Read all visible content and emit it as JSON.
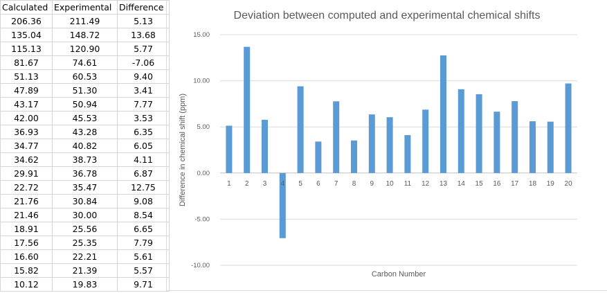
{
  "table": {
    "headers": [
      "Calculated",
      "Experimental",
      "Difference"
    ],
    "rows": [
      [
        "206.36",
        "211.49",
        "5.13"
      ],
      [
        "135.04",
        "148.72",
        "13.68"
      ],
      [
        "115.13",
        "120.90",
        "5.77"
      ],
      [
        "81.67",
        "74.61",
        "-7.06"
      ],
      [
        "51.13",
        "60.53",
        "9.40"
      ],
      [
        "47.89",
        "51.30",
        "3.41"
      ],
      [
        "43.17",
        "50.94",
        "7.77"
      ],
      [
        "42.00",
        "45.53",
        "3.53"
      ],
      [
        "36.93",
        "43.28",
        "6.35"
      ],
      [
        "34.77",
        "40.82",
        "6.05"
      ],
      [
        "34.62",
        "38.73",
        "4.11"
      ],
      [
        "29.91",
        "36.78",
        "6.87"
      ],
      [
        "22.72",
        "35.47",
        "12.75"
      ],
      [
        "21.76",
        "30.84",
        "9.08"
      ],
      [
        "21.46",
        "30.00",
        "8.54"
      ],
      [
        "18.91",
        "25.56",
        "6.65"
      ],
      [
        "17.56",
        "25.35",
        "7.79"
      ],
      [
        "16.60",
        "22.21",
        "5.61"
      ],
      [
        "15.82",
        "21.39",
        "5.57"
      ],
      [
        "10.12",
        "19.83",
        "9.71"
      ]
    ]
  },
  "chart_data": {
    "type": "bar",
    "title": "Deviation between computed and experimental chemical shifts",
    "xlabel": "Carbon Number",
    "ylabel": "Difference in chemical shift (ppm)",
    "categories": [
      "1",
      "2",
      "3",
      "4",
      "5",
      "6",
      "7",
      "8",
      "9",
      "10",
      "11",
      "12",
      "13",
      "14",
      "15",
      "16",
      "17",
      "18",
      "19",
      "20"
    ],
    "values": [
      5.13,
      13.68,
      5.77,
      -7.06,
      9.4,
      3.41,
      7.77,
      3.53,
      6.35,
      6.05,
      4.11,
      6.87,
      12.75,
      9.08,
      8.54,
      6.65,
      7.79,
      5.61,
      5.57,
      9.71
    ],
    "ylim": [
      -10,
      15
    ],
    "yticks": [
      "-10.00",
      "-5.00",
      "0.00",
      "5.00",
      "10.00",
      "15.00"
    ],
    "grid": true,
    "bar_color": "#5b9bd5"
  }
}
